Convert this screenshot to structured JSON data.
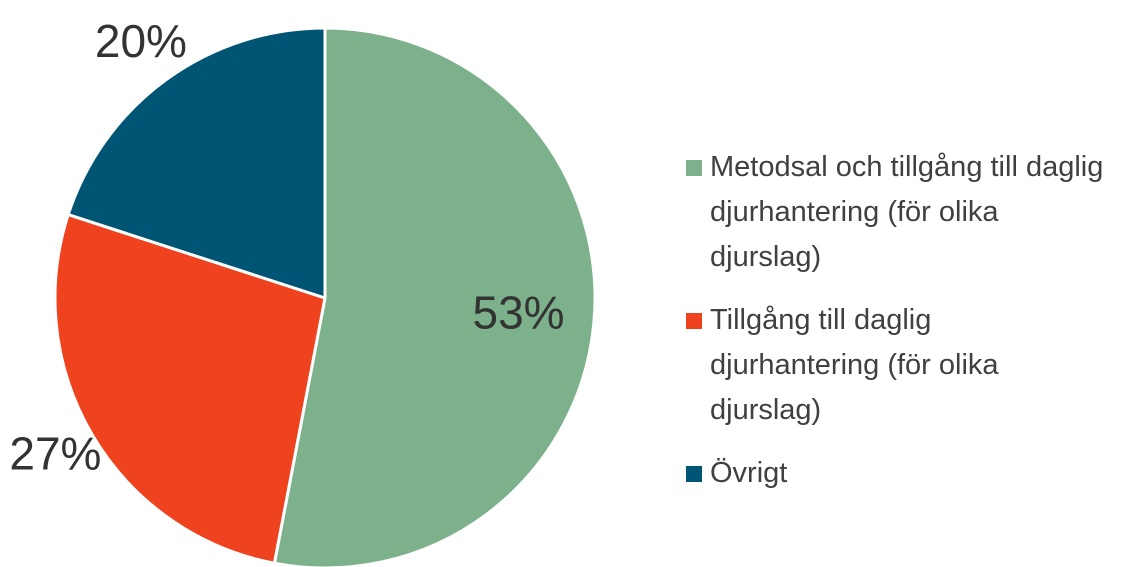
{
  "chart_data": {
    "type": "pie",
    "categories": [
      "Metodsal och tillgång till daglig djurhantering (för olika djurslag)",
      "Tillgång till daglig djurhantering (för olika djurslag)",
      "Övrigt"
    ],
    "values": [
      53,
      27,
      20
    ],
    "value_labels": [
      "53%",
      "27%",
      "20%"
    ],
    "colors": [
      "#7db18b",
      "#ef421f",
      "#005574"
    ],
    "legend": "right"
  }
}
